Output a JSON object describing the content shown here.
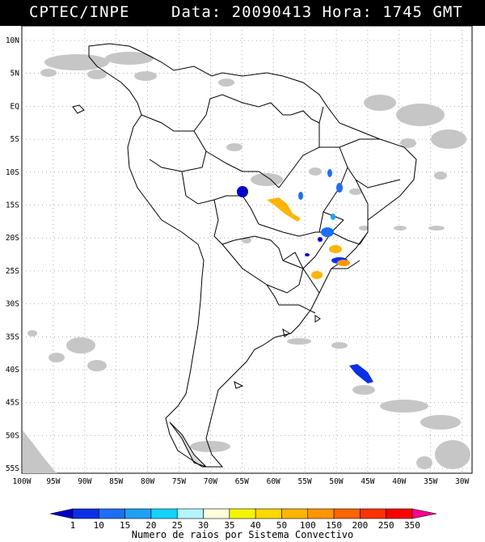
{
  "header": {
    "source": "CPTEC/INPE",
    "datetime": "Data: 20090413 Hora: 1745 GMT"
  },
  "map": {
    "lat_labels": [
      "10N",
      "5N",
      "EQ",
      "5S",
      "10S",
      "15S",
      "20S",
      "25S",
      "30S",
      "35S",
      "40S",
      "45S",
      "50S",
      "55S"
    ],
    "lon_labels": [
      "100W",
      "95W",
      "90W",
      "85W",
      "80W",
      "75W",
      "70W",
      "65W",
      "60W",
      "55W",
      "50W",
      "45W",
      "40W",
      "35W",
      "30W"
    ]
  },
  "legend": {
    "ticks": [
      "1",
      "10",
      "15",
      "20",
      "25",
      "30",
      "35",
      "40",
      "50",
      "100",
      "150",
      "200",
      "250",
      "350"
    ],
    "colors": [
      "#0000c8",
      "#0a2fe6",
      "#1e6ef5",
      "#1ea0f5",
      "#14d2ff",
      "#b4f5ff",
      "#ffffdc",
      "#f5f500",
      "#ffd700",
      "#ffb400",
      "#ff9600",
      "#ff6400",
      "#ff3200",
      "#ff0000",
      "#ff0090"
    ],
    "title": "Numero de raios por Sistema Convectivo"
  }
}
